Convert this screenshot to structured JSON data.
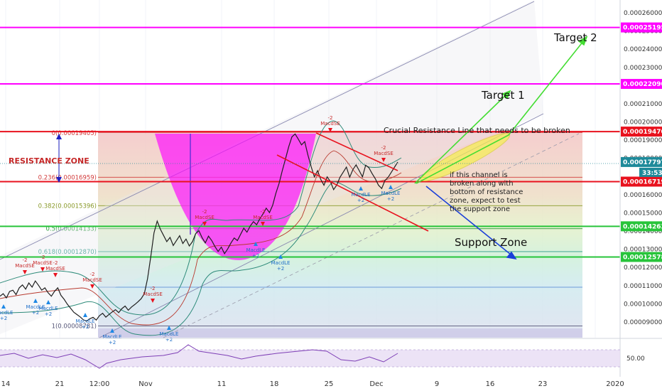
{
  "chart_data": {
    "type": "line",
    "y_axis_ticks": [
      "0.00026000",
      "0.00025000",
      "0.00024000",
      "0.00023000",
      "0.00022000",
      "0.00021000",
      "0.00020000",
      "0.00019000",
      "0.00018000",
      "0.00016000",
      "0.00015000",
      "0.00014000",
      "0.00013000",
      "0.00012000",
      "0.00011000",
      "0.00010000",
      "0.00009000"
    ],
    "x_axis_ticks": [
      "14",
      "21",
      "12:00",
      "Nov",
      "11",
      "18",
      "25",
      "Dec",
      "9",
      "16",
      "23",
      "2020"
    ],
    "horizontal_levels": [
      {
        "value": "0.00025195",
        "color": "#ff00ff"
      },
      {
        "value": "0.00022090",
        "color": "#ff00ff"
      },
      {
        "value": "0.00019470",
        "color": "#e8121e"
      },
      {
        "value": "0.00016719",
        "color": "#e8121e"
      },
      {
        "value": "0.00014263",
        "color": "#27c43a"
      },
      {
        "value": "0.00012578",
        "color": "#27c43a"
      }
    ],
    "current_price": "0.00017797",
    "countdown": "33:53",
    "fib_levels": [
      {
        "label": "0(0.00019405)",
        "value": 0.00019405,
        "color": "#d23c3c"
      },
      {
        "label": "0.236(0.00016959)",
        "value": 0.00016959,
        "color": "#d23c3c"
      },
      {
        "label": "0.382(0.00015396)",
        "value": 0.00015396,
        "color": "#8a9a2a"
      },
      {
        "label": "0.5(0.00014133)",
        "value": 0.00014133,
        "color": "#2a9a3a"
      },
      {
        "label": "0.618(0.00012870)",
        "value": 0.0001287,
        "color": "#2a9a8a"
      },
      {
        "label": "1(0.00008781)",
        "value": 8.781e-05,
        "color": "#555577"
      }
    ],
    "series": [
      {
        "values": [
          10420,
          10560,
          10330,
          10680,
          10750,
          10510,
          10880,
          11040,
          10810,
          11150,
          10920,
          11260,
          11020,
          10750,
          10880,
          10610,
          10420,
          10690,
          10880,
          10470,
          10250,
          9980,
          9760,
          9540,
          9410,
          9280,
          9120,
          9050,
          9180,
          9260,
          9110,
          9350,
          9480,
          9270,
          9420,
          9560,
          9680,
          9520,
          9740,
          9880,
          9650,
          9830,
          9960,
          10110,
          10280,
          10560,
          11380,
          12600,
          13900,
          14550,
          14100,
          13760,
          13420,
          13650,
          13210,
          13480,
          13750,
          13320,
          13560,
          13180,
          13420,
          13860,
          14020,
          13640,
          13350,
          13720,
          13480,
          13150,
          12880,
          13120,
          12760,
          13020,
          13350,
          13620,
          13480,
          13820,
          14160,
          13940,
          14280,
          14520,
          14350,
          14680,
          14940,
          15260,
          15020,
          15420,
          16080,
          16620,
          17320,
          17960,
          18640,
          19180,
          19340,
          19050,
          18740,
          18920,
          18180,
          17540,
          16980,
          17320,
          16840,
          16520,
          16980,
          16720,
          16280,
          16540,
          16960,
          17240,
          17520,
          16960,
          17380,
          17640,
          17320,
          16980,
          17620,
          17480,
          17160,
          16880,
          16520,
          16340,
          16780,
          16960,
          17240,
          17520,
          17797
        ]
      }
    ],
    "indicator": {
      "name": "RSI",
      "value": "50.00"
    },
    "signal_labels": {
      "short_entry": "MacdSE",
      "long_entry": "MacdLE",
      "count": "-2",
      "count_long": "+2"
    }
  },
  "annotations": {
    "resistance_zone": "RESISTANCE ZONE",
    "crucial_line": "Crucial Resistance Line that needs to be broken",
    "channel_note": [
      "if this channel is",
      "broken along with",
      "bottom of resistance",
      "zone, expect to test",
      "the support zone"
    ],
    "target1": "Target 1",
    "target2": "Target 2",
    "support_zone": "Support Zone"
  },
  "colors": {
    "magenta": "#ff00ff",
    "red": "#e8121e",
    "green": "#27c43a",
    "price_line": "#1f1f1f",
    "bollinger": "#2e8b7a",
    "rsi": "#7e3fb6",
    "target_arrow": "#44dd33",
    "support_arrow": "#1a3fd9"
  }
}
